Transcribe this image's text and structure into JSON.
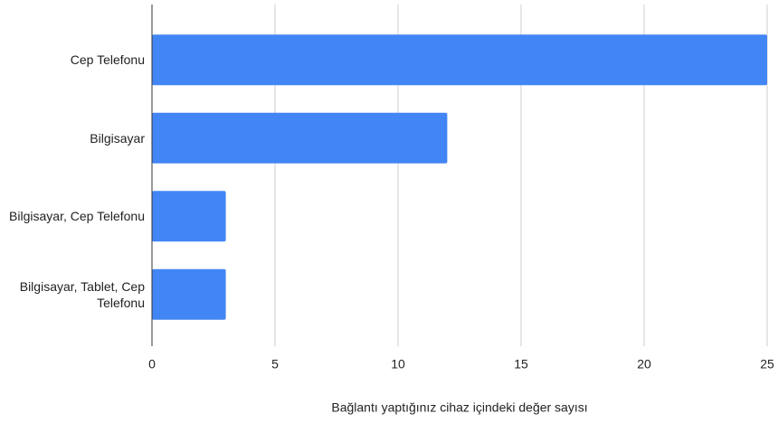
{
  "chart_data": {
    "type": "bar",
    "orientation": "horizontal",
    "categories": [
      "Cep Telefonu",
      "Bilgisayar",
      "Bilgisayar, Cep Telefonu",
      "Bilgisayar, Tablet, Cep Telefonu"
    ],
    "values": [
      25,
      12,
      3,
      3
    ],
    "color": "#4285f4",
    "xlabel": "Bağlantı yaptığınız cihaz içindeki değer sayısı",
    "xlim": [
      0,
      25
    ],
    "xticks": [
      0,
      5,
      10,
      15,
      20,
      25
    ],
    "grid": true
  }
}
